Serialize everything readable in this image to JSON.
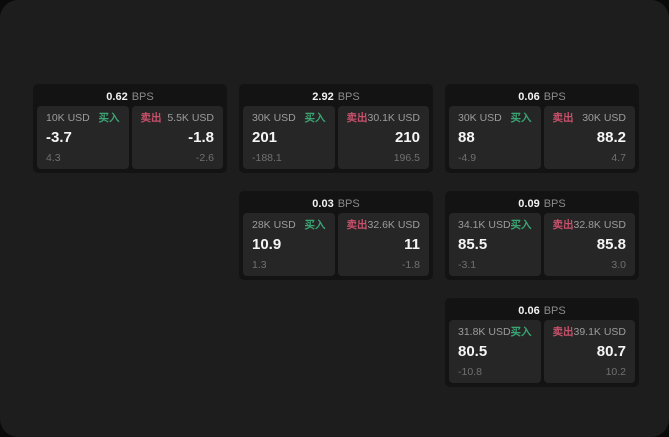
{
  "labels": {
    "bps": "BPS",
    "buy": "买入",
    "sell": "卖出"
  },
  "colors": {
    "buy": "#3aa573",
    "sell": "#c7506a",
    "canvas": "#1d1d1d",
    "card": "#131313",
    "panel": "#262626"
  },
  "cards": [
    {
      "bps": "0.62",
      "buy": {
        "amount": "10K USD",
        "value": "-3.7",
        "sub": "4.3"
      },
      "sell": {
        "amount": "5.5K USD",
        "value": "-1.8",
        "sub": "-2.6"
      }
    },
    {
      "bps": "2.92",
      "buy": {
        "amount": "30K USD",
        "value": "201",
        "sub": "-188.1"
      },
      "sell": {
        "amount": "30.1K USD",
        "value": "210",
        "sub": "196.5"
      }
    },
    {
      "bps": "0.06",
      "buy": {
        "amount": "30K USD",
        "value": "88",
        "sub": "-4.9"
      },
      "sell": {
        "amount": "30K USD",
        "value": "88.2",
        "sub": "4.7"
      }
    },
    {
      "bps": "0.03",
      "buy": {
        "amount": "28K USD",
        "value": "10.9",
        "sub": "1.3"
      },
      "sell": {
        "amount": "32.6K USD",
        "value": "11",
        "sub": "-1.8"
      }
    },
    {
      "bps": "0.09",
      "buy": {
        "amount": "34.1K USD",
        "value": "85.5",
        "sub": "-3.1"
      },
      "sell": {
        "amount": "32.8K USD",
        "value": "85.8",
        "sub": "3.0"
      }
    },
    {
      "bps": "0.06",
      "buy": {
        "amount": "31.8K USD",
        "value": "80.5",
        "sub": "-10.8"
      },
      "sell": {
        "amount": "39.1K USD",
        "value": "80.7",
        "sub": "10.2"
      }
    }
  ]
}
